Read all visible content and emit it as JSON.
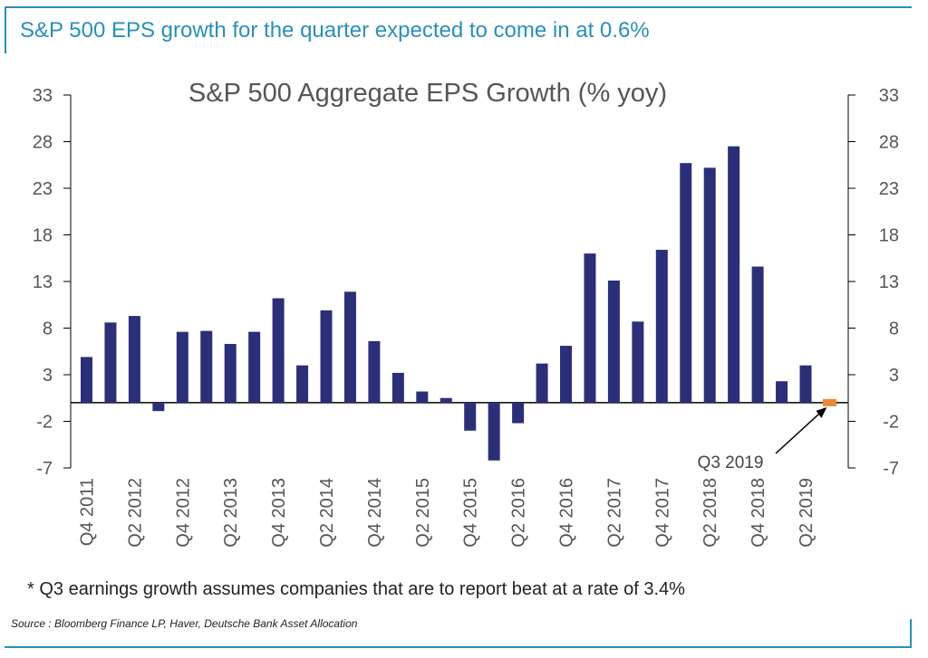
{
  "headline": "S&P 500 EPS growth for the quarter expected to come in at 0.6%",
  "footnote": "* Q3 earnings growth assumes companies that are to report beat at a rate of 3.4%",
  "source": "Source : Bloomberg Finance LP, Haver, Deutsche Bank Asset Allocation",
  "colors": {
    "bar": "#2b2f78",
    "highlight": "#e8893a",
    "accent": "#2a8fb8",
    "text": "#555555"
  },
  "chart_data": {
    "type": "bar",
    "title": "S&P 500 Aggregate EPS Growth (% yoy)",
    "xlabel": "",
    "ylabel": "",
    "ylim": [
      -7,
      33
    ],
    "yticks": [
      33,
      28,
      23,
      18,
      13,
      8,
      3,
      -2,
      -7
    ],
    "grid": false,
    "categories": [
      "Q4 2011",
      "Q1 2012",
      "Q2 2012",
      "Q3 2012",
      "Q4 2012",
      "Q1 2013",
      "Q2 2013",
      "Q3 2013",
      "Q4 2013",
      "Q1 2014",
      "Q2 2014",
      "Q3 2014",
      "Q4 2014",
      "Q1 2015",
      "Q2 2015",
      "Q3 2015",
      "Q4 2015",
      "Q1 2016",
      "Q2 2016",
      "Q3 2016",
      "Q4 2016",
      "Q1 2017",
      "Q2 2017",
      "Q3 2017",
      "Q4 2017",
      "Q1 2018",
      "Q2 2018",
      "Q3 2018",
      "Q4 2018",
      "Q1 2019",
      "Q2 2019",
      "Q3 2019"
    ],
    "visible_tick_labels": [
      "Q4 2011",
      "Q2 2012",
      "Q4 2012",
      "Q2 2013",
      "Q4 2013",
      "Q2 2014",
      "Q4 2014",
      "Q2 2015",
      "Q4 2015",
      "Q2 2016",
      "Q4 2016",
      "Q2 2017",
      "Q4 2017",
      "Q2 2018",
      "Q4 2018",
      "Q2 2019"
    ],
    "series": [
      {
        "values": [
          4.9,
          8.6,
          9.3,
          -0.9,
          7.6,
          7.7,
          6.3,
          7.6,
          11.2,
          4.0,
          9.9,
          11.9,
          6.6,
          3.2,
          1.2,
          0.5,
          -3.0,
          -6.2,
          -2.2,
          4.2,
          6.1,
          16.0,
          13.1,
          8.7,
          16.4,
          25.7,
          25.2,
          27.5,
          14.6,
          2.3,
          4.0,
          0.6
        ]
      }
    ],
    "highlight_index": 31,
    "annotation": "Q3 2019"
  }
}
